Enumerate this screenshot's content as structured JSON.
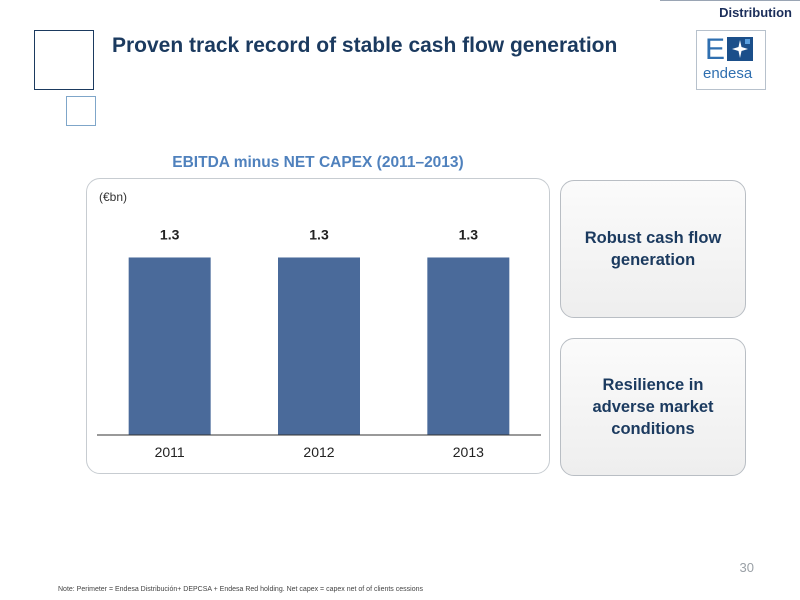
{
  "header": {
    "section_label": "Distribution",
    "title": "Proven track record of stable cash flow generation",
    "logo_text": "endesa"
  },
  "chart_data": {
    "type": "bar",
    "title": "EBITDA minus NET CAPEX (2011–2013)",
    "unit_label": "(€bn)",
    "categories": [
      "2011",
      "2012",
      "2013"
    ],
    "values": [
      1.3,
      1.3,
      1.3
    ],
    "data_labels": [
      "1.3",
      "1.3",
      "1.3"
    ],
    "xlabel": "",
    "ylabel": "",
    "ylim": [
      0,
      1.45
    ],
    "grid": false,
    "colors": {
      "bar": "#4a6a9a",
      "axis": "#333333"
    }
  },
  "side_boxes": [
    {
      "text": "Robust cash flow generation"
    },
    {
      "text": "Resilience in adverse market conditions"
    }
  ],
  "footer": {
    "page_number": "30",
    "note": "Note: Perimeter = Endesa Distribución+ DEPCSA + Endesa Red holding. Net capex = capex net of of clients cessions"
  }
}
